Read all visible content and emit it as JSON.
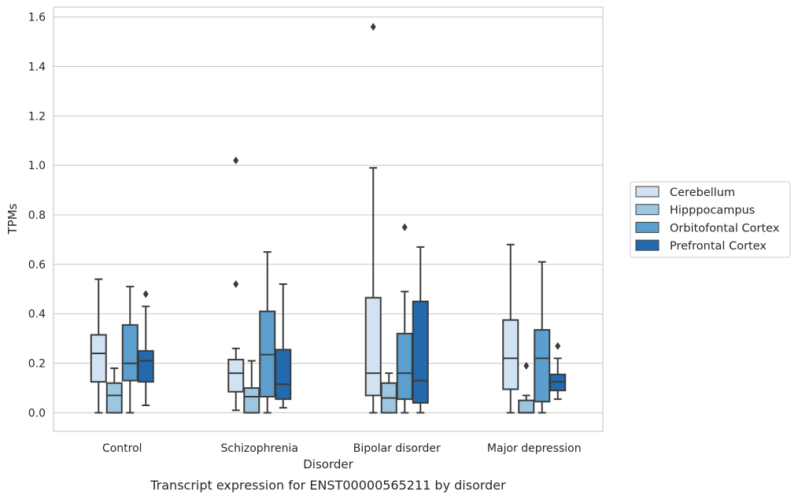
{
  "chart_data": {
    "type": "boxplot",
    "caption": "Transcript expression for ENST00000565211 by disorder",
    "xlabel": "Disorder",
    "ylabel": "TPMs",
    "ylim": [
      -0.075,
      1.64
    ],
    "yticks": [
      0.0,
      0.2,
      0.4,
      0.6,
      0.8,
      1.0,
      1.2,
      1.4,
      1.6
    ],
    "ytick_labels": [
      "0.0",
      "0.2",
      "0.4",
      "0.6",
      "0.8",
      "1.0",
      "1.2",
      "1.4",
      "1.6"
    ],
    "grid": true,
    "legend_position": "right",
    "categories": [
      "Control",
      "Schizophrenia",
      "Bipolar disorder",
      "Major depression"
    ],
    "series": [
      {
        "name": "Cerebellum",
        "color": "#d1e2f2",
        "boxes": [
          {
            "whisker_low": 0.0,
            "q1": 0.125,
            "median": 0.24,
            "q3": 0.315,
            "whisker_high": 0.54,
            "outliers": []
          },
          {
            "whisker_low": 0.01,
            "q1": 0.085,
            "median": 0.16,
            "q3": 0.215,
            "whisker_high": 0.26,
            "outliers": [
              0.52,
              1.02
            ]
          },
          {
            "whisker_low": 0.0,
            "q1": 0.07,
            "median": 0.16,
            "q3": 0.465,
            "whisker_high": 0.99,
            "outliers": [
              1.56
            ]
          },
          {
            "whisker_low": 0.0,
            "q1": 0.095,
            "median": 0.22,
            "q3": 0.375,
            "whisker_high": 0.68,
            "outliers": []
          }
        ]
      },
      {
        "name": "Hipppocampus",
        "color": "#9dc7e1",
        "boxes": [
          {
            "whisker_low": 0.0,
            "q1": 0.0,
            "median": 0.07,
            "q3": 0.12,
            "whisker_high": 0.18,
            "outliers": []
          },
          {
            "whisker_low": 0.0,
            "q1": 0.0,
            "median": 0.065,
            "q3": 0.1,
            "whisker_high": 0.21,
            "outliers": []
          },
          {
            "whisker_low": 0.0,
            "q1": 0.0,
            "median": 0.06,
            "q3": 0.12,
            "whisker_high": 0.16,
            "outliers": []
          },
          {
            "whisker_low": 0.0,
            "q1": 0.0,
            "median": 0.0,
            "q3": 0.05,
            "whisker_high": 0.07,
            "outliers": [
              0.19
            ]
          }
        ]
      },
      {
        "name": "Orbitofontal Cortex",
        "color": "#5a9fcd",
        "boxes": [
          {
            "whisker_low": 0.0,
            "q1": 0.13,
            "median": 0.2,
            "q3": 0.355,
            "whisker_high": 0.51,
            "outliers": []
          },
          {
            "whisker_low": 0.0,
            "q1": 0.065,
            "median": 0.235,
            "q3": 0.41,
            "whisker_high": 0.65,
            "outliers": []
          },
          {
            "whisker_low": 0.0,
            "q1": 0.055,
            "median": 0.16,
            "q3": 0.32,
            "whisker_high": 0.49,
            "outliers": [
              0.75
            ]
          },
          {
            "whisker_low": 0.0,
            "q1": 0.045,
            "median": 0.22,
            "q3": 0.335,
            "whisker_high": 0.61,
            "outliers": []
          }
        ]
      },
      {
        "name": "Prefrontal Cortex",
        "color": "#2369ad",
        "boxes": [
          {
            "whisker_low": 0.03,
            "q1": 0.125,
            "median": 0.21,
            "q3": 0.25,
            "whisker_high": 0.43,
            "outliers": [
              0.48
            ]
          },
          {
            "whisker_low": 0.02,
            "q1": 0.055,
            "median": 0.115,
            "q3": 0.255,
            "whisker_high": 0.52,
            "outliers": []
          },
          {
            "whisker_low": 0.0,
            "q1": 0.04,
            "median": 0.13,
            "q3": 0.45,
            "whisker_high": 0.67,
            "outliers": []
          },
          {
            "whisker_low": 0.055,
            "q1": 0.09,
            "median": 0.125,
            "q3": 0.155,
            "whisker_high": 0.22,
            "outliers": [
              0.27
            ]
          }
        ]
      }
    ]
  }
}
